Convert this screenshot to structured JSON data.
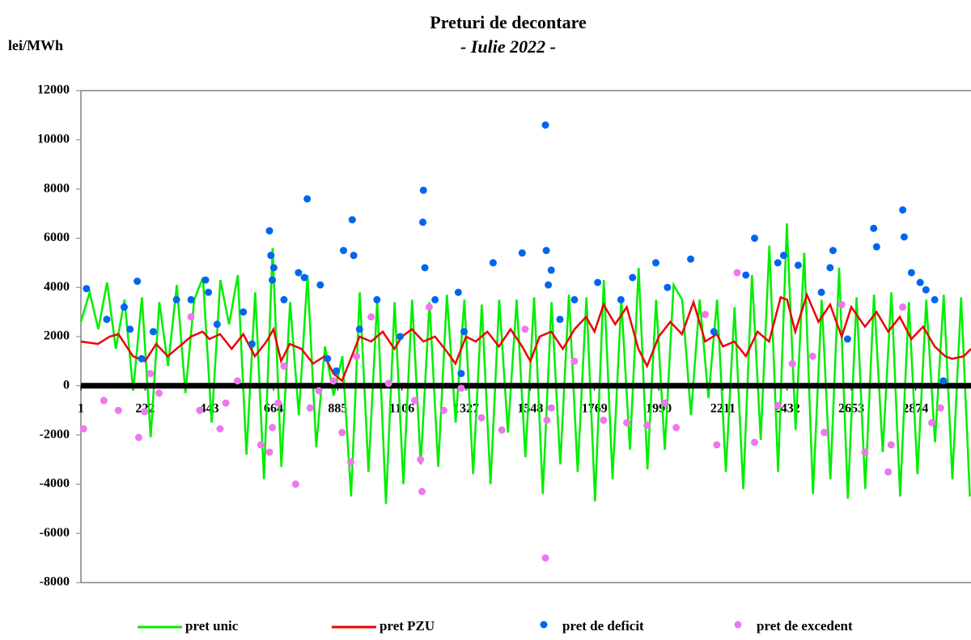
{
  "chart_data": {
    "type": "line",
    "title": "Preturi de decontare",
    "subtitle": "- Iulie 2022 -",
    "y_label": "lei/MWh",
    "xlim": [
      1,
      3065
    ],
    "ylim": [
      -8000,
      12000
    ],
    "xticks": [
      1,
      222,
      443,
      664,
      885,
      1106,
      1327,
      1548,
      1769,
      1990,
      2211,
      2432,
      2653,
      2874
    ],
    "yticks": [
      -8000,
      -6000,
      -4000,
      -2000,
      0,
      2000,
      4000,
      6000,
      8000,
      10000,
      12000
    ],
    "grid": false,
    "legend": "bottom",
    "series": [
      {
        "name": "pret unic",
        "color": "#00ee00",
        "kind": "line",
        "x": [
          1,
          31,
          61,
          91,
          121,
          151,
          181,
          211,
          241,
          271,
          301,
          331,
          361,
          391,
          421,
          451,
          481,
          511,
          541,
          571,
          601,
          631,
          661,
          691,
          721,
          751,
          781,
          811,
          841,
          871,
          901,
          931,
          961,
          991,
          1021,
          1051,
          1081,
          1111,
          1141,
          1171,
          1201,
          1231,
          1261,
          1291,
          1321,
          1351,
          1381,
          1411,
          1441,
          1471,
          1501,
          1531,
          1561,
          1591,
          1621,
          1651,
          1681,
          1711,
          1741,
          1771,
          1801,
          1831,
          1861,
          1891,
          1921,
          1951,
          1981,
          2011,
          2041,
          2071,
          2101,
          2131,
          2161,
          2191,
          2221,
          2251,
          2281,
          2311,
          2341,
          2371,
          2401,
          2431,
          2461,
          2491,
          2521,
          2551,
          2581,
          2611,
          2641,
          2671,
          2701,
          2731,
          2761,
          2791,
          2821,
          2851,
          2881,
          2911,
          2941,
          2971,
          3001,
          3031,
          3061
        ],
        "values": [
          2600,
          3800,
          2300,
          4200,
          1500,
          3500,
          -200,
          3600,
          -2100,
          3400,
          800,
          4100,
          -300,
          3500,
          4400,
          -1500,
          4300,
          2500,
          4500,
          -2800,
          3800,
          -3800,
          5600,
          -3300,
          3400,
          -1200,
          4500,
          -2500,
          1600,
          -400,
          1200,
          -4500,
          3800,
          -3500,
          3500,
          -4800,
          3400,
          -4000,
          3500,
          -3200,
          3400,
          -3300,
          3700,
          -1500,
          3500,
          -3600,
          3300,
          -4000,
          3500,
          -1900,
          3500,
          -2900,
          3600,
          -4400,
          3400,
          -3200,
          3700,
          -3500,
          3600,
          -4700,
          4300,
          -3800,
          3500,
          -2600,
          4800,
          -3400,
          3500,
          -2600,
          4100,
          3500,
          -1200,
          3500,
          -500,
          3500,
          -3500,
          3200,
          -4200,
          4500,
          -2200,
          5700,
          -3500,
          6600,
          -1800,
          5400,
          -4400,
          3500,
          -3800,
          4800,
          -4600,
          3600,
          -4200,
          3700,
          -2700,
          3800,
          -4500,
          3400,
          -3600,
          3500,
          -2300,
          3700,
          -3800,
          3600,
          -4500
        ]
      },
      {
        "name": "pret PZU",
        "color": "#ee0000",
        "kind": "line",
        "x": [
          1,
          60,
          100,
          130,
          180,
          222,
          260,
          300,
          340,
          380,
          420,
          443,
          480,
          520,
          560,
          600,
          640,
          664,
          690,
          720,
          760,
          800,
          840,
          870,
          900,
          930,
          960,
          1000,
          1040,
          1080,
          1106,
          1140,
          1180,
          1220,
          1260,
          1290,
          1327,
          1360,
          1400,
          1440,
          1480,
          1520,
          1548,
          1580,
          1620,
          1660,
          1700,
          1740,
          1769,
          1800,
          1840,
          1880,
          1920,
          1950,
          1990,
          2030,
          2070,
          2110,
          2150,
          2190,
          2211,
          2250,
          2290,
          2330,
          2370,
          2410,
          2432,
          2460,
          2500,
          2540,
          2580,
          2620,
          2653,
          2700,
          2740,
          2780,
          2820,
          2860,
          2900,
          2940,
          2976,
          3000,
          3040,
          3065
        ],
        "values": [
          1800,
          1700,
          2000,
          2100,
          1200,
          1000,
          1700,
          1200,
          1600,
          2000,
          2200,
          1900,
          2100,
          1500,
          2100,
          1200,
          1800,
          2300,
          1000,
          1700,
          1500,
          900,
          1200,
          500,
          200,
          1100,
          2000,
          1800,
          2200,
          1500,
          2000,
          2300,
          1800,
          2000,
          1400,
          900,
          2000,
          1800,
          2200,
          1600,
          2300,
          1600,
          1000,
          2000,
          2200,
          1500,
          2300,
          2800,
          2200,
          3300,
          2500,
          3200,
          1500,
          800,
          2000,
          2600,
          2100,
          3400,
          1800,
          2100,
          1600,
          1800,
          1200,
          2200,
          1800,
          3600,
          3500,
          2200,
          3700,
          2600,
          3300,
          2000,
          3200,
          2400,
          3000,
          2200,
          2800,
          1900,
          2400,
          1600,
          1200,
          1100,
          1200,
          1500
        ]
      },
      {
        "name": "pret de deficit",
        "color": "#0066ee",
        "kind": "scatter",
        "x": [
          20,
          90,
          150,
          170,
          195,
          210,
          250,
          330,
          380,
          430,
          440,
          470,
          560,
          590,
          650,
          655,
          660,
          665,
          700,
          750,
          770,
          780,
          825,
          850,
          880,
          905,
          935,
          940,
          960,
          1020,
          1100,
          1180,
          1178,
          1185,
          1220,
          1300,
          1310,
          1320,
          1420,
          1520,
          1600,
          1603,
          1610,
          1620,
          1650,
          1700,
          1780,
          1860,
          1900,
          1980,
          2020,
          2100,
          2180,
          2290,
          2320,
          2400,
          2420,
          2470,
          2550,
          2590,
          2580,
          2640,
          2730,
          2740,
          2830,
          2835,
          2860,
          2890,
          2910,
          2940,
          2970
        ],
        "values": [
          3950,
          2700,
          3200,
          2300,
          4250,
          1100,
          2200,
          3500,
          3500,
          4300,
          3800,
          2500,
          3000,
          1700,
          6300,
          5300,
          4300,
          4800,
          3500,
          4600,
          4400,
          7600,
          4100,
          1100,
          600,
          5500,
          6750,
          5300,
          2300,
          3500,
          2000,
          7950,
          6650,
          4800,
          3500,
          3800,
          500,
          2200,
          5000,
          5400,
          10600,
          5500,
          4100,
          4700,
          2700,
          3500,
          4200,
          3500,
          4400,
          5000,
          4000,
          5150,
          2200,
          4500,
          6000,
          5000,
          5300,
          4900,
          3800,
          5500,
          4800,
          1900,
          6400,
          5650,
          7150,
          6050,
          4600,
          4200,
          3900,
          3500,
          200
        ]
      },
      {
        "name": "pret de excedent",
        "color": "#ee77ee",
        "kind": "scatter",
        "x": [
          10,
          80,
          130,
          200,
          220,
          240,
          270,
          380,
          410,
          480,
          500,
          540,
          620,
          650,
          660,
          680,
          700,
          740,
          790,
          820,
          870,
          900,
          930,
          950,
          1000,
          1060,
          1150,
          1170,
          1175,
          1200,
          1250,
          1310,
          1380,
          1450,
          1530,
          1600,
          1605,
          1620,
          1700,
          1800,
          1880,
          1950,
          2010,
          2050,
          2150,
          2190,
          2260,
          2320,
          2400,
          2450,
          2520,
          2560,
          2620,
          2700,
          2780,
          2790,
          2830,
          2930,
          2960
        ],
        "values": [
          -1750,
          -600,
          -1000,
          -2100,
          -1050,
          500,
          -300,
          2800,
          -1000,
          -1750,
          -700,
          200,
          -2400,
          -2700,
          -1700,
          -700,
          800,
          -4000,
          -900,
          -200,
          200,
          -1900,
          -3100,
          1200,
          2800,
          100,
          -600,
          -3000,
          -4300,
          3200,
          -1000,
          -100,
          -1300,
          -1800,
          2300,
          -7000,
          -1400,
          -900,
          1000,
          -1400,
          -1500,
          -1600,
          -700,
          -1700,
          2900,
          -2400,
          4600,
          -2300,
          -800,
          900,
          1200,
          -1900,
          3300,
          -2700,
          -3500,
          -2400,
          3200,
          -1500,
          -900
        ]
      }
    ]
  }
}
